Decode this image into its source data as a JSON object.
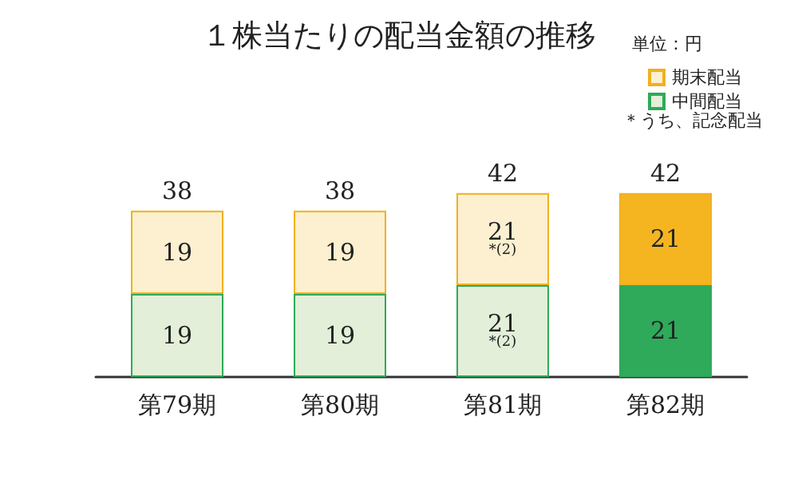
{
  "chart_data": {
    "type": "bar",
    "title": "１株当たりの配当金額の推移",
    "categories": [
      "第79期",
      "第80期",
      "第81期",
      "第82期"
    ],
    "stacked": true,
    "tick_labels": "x",
    "legend": "top right",
    "series": [
      {
        "name": "中間配当",
        "color": "#2eaa5a",
        "colors": [
          "#e3efd9",
          "#e3efd9",
          "#e3efd9",
          "#2eaa5a"
        ],
        "values": [
          19,
          19,
          21,
          21
        ],
        "value_labels": [
          "19",
          "19",
          "21\n*(2)",
          "21"
        ]
      },
      {
        "name": "期末配当",
        "color": "#f0b020",
        "colors": [
          "#fcf0d0",
          "#fcf0d0",
          "#fcf0d0",
          "#f4b520"
        ],
        "values": [
          19,
          19,
          21,
          21
        ],
        "value_labels": [
          "19",
          "19",
          "21\n*(2)",
          "21"
        ]
      }
    ],
    "totals": [
      "38",
      "38",
      "42",
      "42"
    ],
    "annotations": [
      "単位：円",
      "＊うち、記念配当"
    ]
  }
}
